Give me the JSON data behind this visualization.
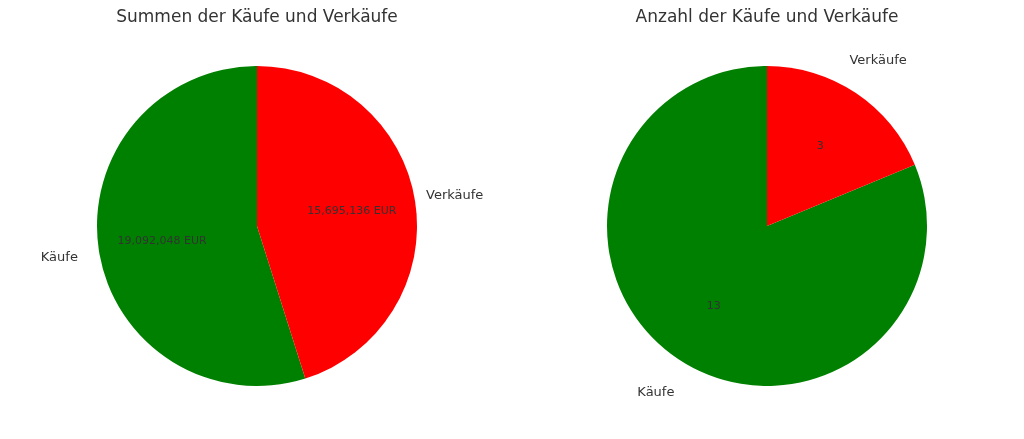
{
  "chart_data": [
    {
      "type": "pie",
      "title": "Summen der Käufe und Verkäufe",
      "categories": [
        "Käufe",
        "Verkäufe"
      ],
      "values": [
        19092048,
        15695136
      ],
      "colors": [
        "#008000",
        "#ff0000"
      ],
      "value_labels": [
        "19,092,048 EUR",
        "15,695,136 EUR"
      ],
      "legend": false
    },
    {
      "type": "pie",
      "title": "Anzahl der Käufe und Verkäufe",
      "categories": [
        "Käufe",
        "Verkäufe"
      ],
      "values": [
        13,
        3
      ],
      "colors": [
        "#008000",
        "#ff0000"
      ],
      "data_labels": true,
      "legend": false
    }
  ]
}
